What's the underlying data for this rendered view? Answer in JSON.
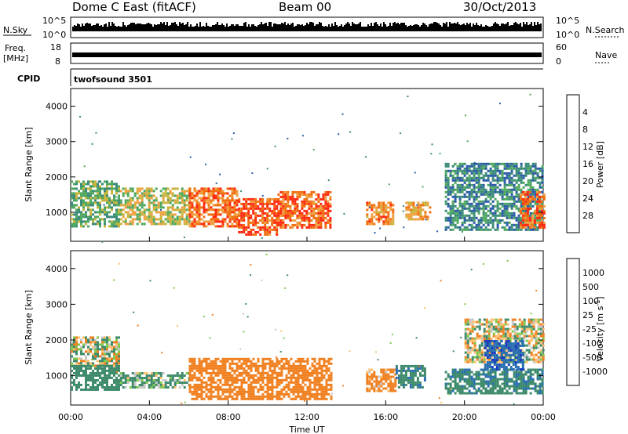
{
  "header": {
    "station": "Dome C East (fitACF)",
    "beam": "Beam 00",
    "date": "30/Oct/2013"
  },
  "strips": {
    "nsky_label": "N.Sky",
    "nsky_ticks": [
      "10^5",
      "10^0"
    ],
    "nsearch_label": "N.Search",
    "nsearch_ticks": [
      "10^5",
      "10^0"
    ],
    "freq_label": "Freq.",
    "freq_unit": "[MHz]",
    "freq_ticks": [
      "18",
      "8"
    ],
    "nave_label": "Nave",
    "nave_ticks": [
      "60",
      "0"
    ],
    "cpid_label": "CPID",
    "cpid_value": "twofsound 3501"
  },
  "chart_data": [
    {
      "type": "heatmap",
      "title": "",
      "xlabel": "Time UT",
      "ylabel": "Slant Range [km]",
      "xticks": [
        "00:00",
        "04:00",
        "08:00",
        "12:00",
        "16:00",
        "20:00",
        "00:00"
      ],
      "xlim_hours": [
        0,
        24
      ],
      "yticks": [
        1000,
        2000,
        3000,
        4000
      ],
      "ylim": [
        180,
        4500
      ],
      "colorbar": {
        "label": "Power [dB]",
        "ticks": [
          "4",
          "8",
          "12",
          "16",
          "20",
          "24",
          "28"
        ],
        "colors": [
          "#1a3cff",
          "#2a5aa8",
          "#3a8a78",
          "#4fa860",
          "#c8b43c",
          "#f0a040",
          "#f07010",
          "#ff2a10"
        ]
      },
      "echo_regions": [
        {
          "t": [
            0.0,
            2.5
          ],
          "range": [
            600,
            1900
          ],
          "value_db": 14
        },
        {
          "t": [
            2.5,
            6.0
          ],
          "range": [
            650,
            1700
          ],
          "value_db": 18
        },
        {
          "t": [
            6.0,
            8.5
          ],
          "range": [
            600,
            1700
          ],
          "value_db": 26
        },
        {
          "t": [
            8.5,
            10.5
          ],
          "range": [
            400,
            1400
          ],
          "value_db": 28
        },
        {
          "t": [
            10.5,
            13.2
          ],
          "range": [
            600,
            1600
          ],
          "value_db": 27
        },
        {
          "t": [
            15.0,
            16.4
          ],
          "range": [
            700,
            1300
          ],
          "value_db": 24
        },
        {
          "t": [
            17.0,
            18.3
          ],
          "range": [
            800,
            1300
          ],
          "value_db": 22
        },
        {
          "t": [
            19.0,
            24.0
          ],
          "range": [
            500,
            2400
          ],
          "value_db": 10
        },
        {
          "t": [
            22.8,
            24.0
          ],
          "range": [
            600,
            1600
          ],
          "value_db": 26
        }
      ]
    },
    {
      "type": "heatmap",
      "title": "",
      "xlabel": "Time UT",
      "ylabel": "Slant Range [km]",
      "xticks": [
        "00:00",
        "04:00",
        "08:00",
        "12:00",
        "16:00",
        "20:00",
        "00:00"
      ],
      "xlim_hours": [
        0,
        24
      ],
      "yticks": [
        1000,
        2000,
        3000,
        4000
      ],
      "ylim": [
        180,
        4500
      ],
      "colorbar": {
        "label": "Velocity [m s^-1]",
        "ticks": [
          "1000",
          "500",
          "100",
          "25",
          "-25",
          "-100",
          "-500",
          "-1000"
        ],
        "colors": [
          "#1a3cc0",
          "#2a70b0",
          "#3d8a6a",
          "#7ec850",
          "#c8c8c8",
          "#ffc070",
          "#f08020",
          "#f04a10",
          "#ff1010"
        ]
      },
      "echo_regions": [
        {
          "t": [
            0.0,
            2.5
          ],
          "range": [
            1300,
            2100
          ],
          "value_ms": 0
        },
        {
          "t": [
            0.0,
            2.5
          ],
          "range": [
            600,
            1300
          ],
          "value_ms": 300
        },
        {
          "t": [
            2.5,
            6.0
          ],
          "range": [
            650,
            1100
          ],
          "value_ms": 150
        },
        {
          "t": [
            6.0,
            13.2
          ],
          "range": [
            350,
            1500
          ],
          "value_ms": -300
        },
        {
          "t": [
            15.0,
            16.5
          ],
          "range": [
            600,
            1200
          ],
          "value_ms": -200
        },
        {
          "t": [
            16.5,
            18.0
          ],
          "range": [
            700,
            1300
          ],
          "value_ms": 400
        },
        {
          "t": [
            19.0,
            24.0
          ],
          "range": [
            500,
            1200
          ],
          "value_ms": 400
        },
        {
          "t": [
            20.0,
            24.0
          ],
          "range": [
            1400,
            2600
          ],
          "value_ms": 0
        },
        {
          "t": [
            21.0,
            23.0
          ],
          "range": [
            1200,
            2000
          ],
          "value_ms": 900
        }
      ]
    }
  ]
}
